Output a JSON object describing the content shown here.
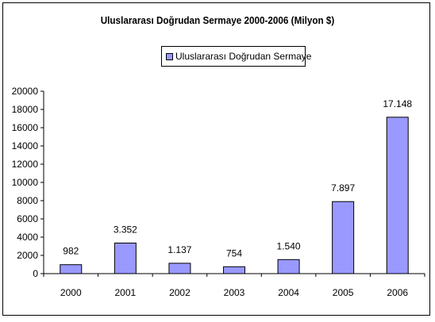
{
  "chart_data": {
    "type": "bar",
    "title": "Uluslararası Doğrudan Sermaye 2000-2006 (Milyon $)",
    "categories": [
      "2000",
      "2001",
      "2002",
      "2003",
      "2004",
      "2005",
      "2006"
    ],
    "series": [
      {
        "name": "Uluslararası Doğrudan Sermaye",
        "values": [
          982,
          3352,
          1137,
          754,
          1540,
          7897,
          17148
        ],
        "data_labels": [
          "982",
          "3.352",
          "1.137",
          "754",
          "1.540",
          "7.897",
          "17.148"
        ],
        "color": "#9999ff"
      }
    ],
    "ylim": [
      0,
      20000
    ],
    "yticks": [
      "0",
      "2000",
      "4000",
      "6000",
      "8000",
      "10000",
      "12000",
      "14000",
      "16000",
      "18000",
      "20000"
    ],
    "grid": false,
    "legend_position": "top-center"
  }
}
